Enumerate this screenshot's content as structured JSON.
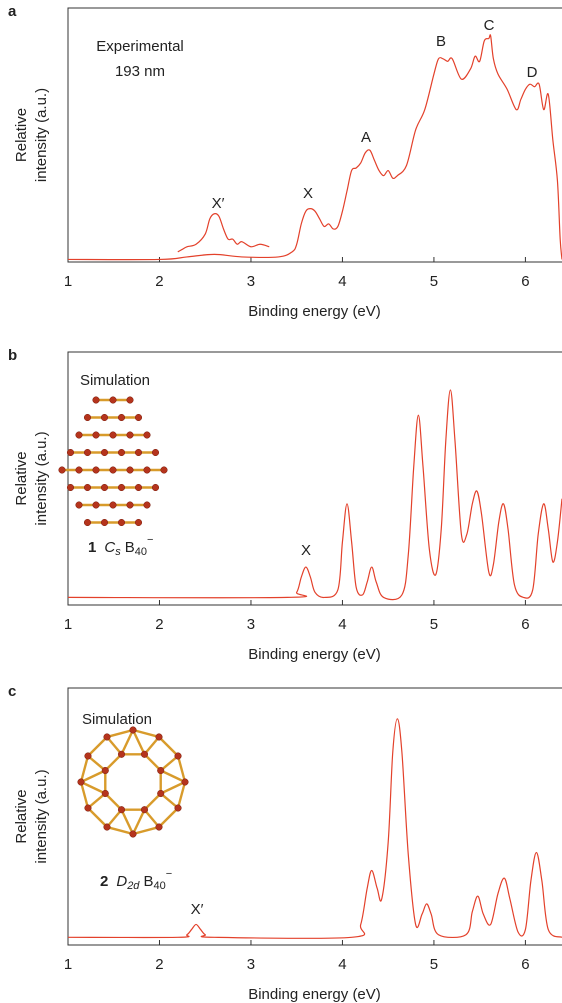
{
  "chart_data": [
    {
      "type": "line",
      "panel_label": "a",
      "xlabel": "Binding energy (eV)",
      "ylabel": [
        "Relative",
        "intensity (a.u.)"
      ],
      "inset_text": [
        "Experimental",
        "193 nm"
      ],
      "annotations": [
        "X′",
        "X",
        "A",
        "B",
        "C",
        "D"
      ],
      "xlim": [
        1,
        6.4
      ],
      "ylim": [
        0,
        1
      ],
      "xticks": [
        1,
        2,
        3,
        4,
        5,
        6
      ],
      "series": [
        {
          "color": "#e3412b",
          "x": [
            1.0,
            2.0,
            2.3,
            2.6,
            2.9,
            3.3,
            3.45,
            3.5,
            3.55,
            3.6,
            3.65,
            3.7,
            3.75,
            3.8,
            3.85,
            3.9,
            3.95,
            4.0,
            4.05,
            4.1,
            4.15,
            4.2,
            4.25,
            4.3,
            4.35,
            4.4,
            4.45,
            4.5,
            4.55,
            4.6,
            4.7,
            4.8,
            4.9,
            5.0,
            5.05,
            5.1,
            5.15,
            5.2,
            5.3,
            5.4,
            5.45,
            5.5,
            5.55,
            5.6,
            5.62,
            5.65,
            5.7,
            5.8,
            5.9,
            5.95,
            6.0,
            6.05,
            6.1,
            6.15,
            6.2,
            6.25,
            6.3,
            6.35,
            6.38,
            6.4
          ],
          "values": [
            0.01,
            0.01,
            0.02,
            0.03,
            0.02,
            0.02,
            0.04,
            0.07,
            0.15,
            0.2,
            0.21,
            0.2,
            0.17,
            0.14,
            0.15,
            0.13,
            0.14,
            0.2,
            0.28,
            0.36,
            0.37,
            0.39,
            0.43,
            0.44,
            0.4,
            0.36,
            0.34,
            0.36,
            0.33,
            0.34,
            0.38,
            0.52,
            0.6,
            0.74,
            0.8,
            0.8,
            0.79,
            0.8,
            0.72,
            0.76,
            0.81,
            0.79,
            0.87,
            0.88,
            0.89,
            0.8,
            0.74,
            0.68,
            0.6,
            0.64,
            0.68,
            0.7,
            0.69,
            0.7,
            0.6,
            0.66,
            0.48,
            0.32,
            0.09,
            0.01
          ]
        },
        {
          "color": "#e3412b",
          "x": [
            2.2,
            2.25,
            2.3,
            2.4,
            2.5,
            2.55,
            2.6,
            2.65,
            2.7,
            2.75,
            2.8,
            2.85,
            2.9,
            3.0,
            3.1,
            3.2
          ],
          "values": [
            0.04,
            0.05,
            0.06,
            0.07,
            0.11,
            0.17,
            0.19,
            0.18,
            0.13,
            0.09,
            0.09,
            0.07,
            0.08,
            0.06,
            0.07,
            0.06
          ]
        }
      ]
    },
    {
      "type": "line",
      "panel_label": "b",
      "xlabel": "Binding energy (eV)",
      "ylabel": [
        "Relative",
        "intensity (a.u.)"
      ],
      "inset_text": [
        "Simulation"
      ],
      "structure_label": {
        "number": "1",
        "point_group": "C",
        "point_group_sub": "s",
        "formula": "B",
        "formula_sub": "40",
        "charge": "−"
      },
      "annotations": [
        "X"
      ],
      "xlim": [
        1,
        6.4
      ],
      "ylim": [
        0,
        1
      ],
      "xticks": [
        1,
        2,
        3,
        4,
        5,
        6
      ],
      "series": [
        {
          "color": "#e3412b",
          "x": [
            1.0,
            3.4,
            3.5,
            3.55,
            3.6,
            3.65,
            3.7,
            3.8,
            3.95,
            4.0,
            4.05,
            4.1,
            4.15,
            4.22,
            4.27,
            4.32,
            4.37,
            4.45,
            4.65,
            4.72,
            4.78,
            4.83,
            4.88,
            4.95,
            5.02,
            5.08,
            5.13,
            5.18,
            5.23,
            5.3,
            5.36,
            5.42,
            5.47,
            5.52,
            5.6,
            5.65,
            5.71,
            5.76,
            5.81,
            5.88,
            5.98,
            6.08,
            6.14,
            6.2,
            6.25,
            6.3,
            6.35,
            6.4
          ],
          "values": [
            0.03,
            0.03,
            0.05,
            0.11,
            0.15,
            0.11,
            0.05,
            0.03,
            0.06,
            0.25,
            0.4,
            0.25,
            0.07,
            0.04,
            0.09,
            0.15,
            0.09,
            0.03,
            0.04,
            0.2,
            0.55,
            0.75,
            0.55,
            0.22,
            0.12,
            0.3,
            0.65,
            0.85,
            0.65,
            0.28,
            0.28,
            0.4,
            0.45,
            0.36,
            0.13,
            0.16,
            0.33,
            0.4,
            0.3,
            0.08,
            0.03,
            0.06,
            0.28,
            0.4,
            0.3,
            0.17,
            0.25,
            0.42
          ]
        }
      ]
    },
    {
      "type": "line",
      "panel_label": "c",
      "xlabel": "Binding energy (eV)",
      "ylabel": [
        "Relative",
        "intensity (a.u.)"
      ],
      "inset_text": [
        "Simulation"
      ],
      "structure_label": {
        "number": "2",
        "point_group": "D",
        "point_group_sub": "2d",
        "formula": "B",
        "formula_sub": "40",
        "charge": "−"
      },
      "annotations": [
        "X′"
      ],
      "xlim": [
        1,
        6.4
      ],
      "ylim": [
        0,
        1
      ],
      "xticks": [
        1,
        2,
        3,
        4,
        5,
        6
      ],
      "series": [
        {
          "color": "#e3412b",
          "x": [
            1.0,
            2.2,
            2.3,
            2.35,
            2.4,
            2.45,
            2.5,
            2.6,
            4.1,
            4.2,
            4.27,
            4.32,
            4.38,
            4.43,
            4.5,
            4.55,
            4.6,
            4.65,
            4.72,
            4.8,
            4.87,
            4.92,
            4.97,
            5.05,
            5.35,
            5.42,
            5.48,
            5.54,
            5.62,
            5.7,
            5.77,
            5.83,
            5.92,
            6.0,
            6.06,
            6.12,
            6.18,
            6.25,
            6.4
          ],
          "values": [
            0.03,
            0.03,
            0.04,
            0.06,
            0.08,
            0.06,
            0.04,
            0.03,
            0.03,
            0.08,
            0.22,
            0.29,
            0.22,
            0.18,
            0.4,
            0.75,
            0.88,
            0.75,
            0.35,
            0.08,
            0.12,
            0.16,
            0.12,
            0.04,
            0.04,
            0.13,
            0.19,
            0.12,
            0.08,
            0.2,
            0.26,
            0.18,
            0.05,
            0.06,
            0.25,
            0.36,
            0.25,
            0.06,
            0.03
          ]
        }
      ]
    }
  ]
}
